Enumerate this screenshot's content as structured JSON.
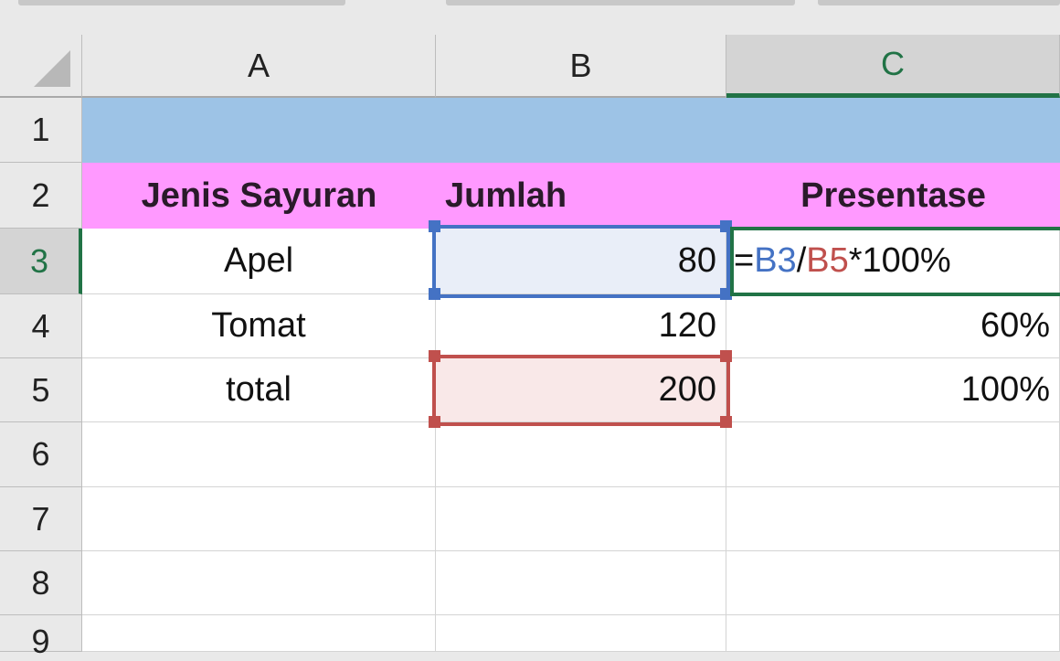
{
  "columns": [
    "A",
    "B",
    "C"
  ],
  "selected_column": "C",
  "rows": [
    "1",
    "2",
    "3",
    "4",
    "5",
    "6",
    "7",
    "8",
    "9"
  ],
  "selected_row": "3",
  "cells": {
    "A2": "Jenis Sayuran",
    "B2": "Jumlah",
    "C2": "Presentase",
    "A3": "Apel",
    "B3": "80",
    "A4": "Tomat",
    "B4": "120",
    "C4": "60%",
    "A5": "total",
    "B5": "200",
    "C5": "100%"
  },
  "formula": {
    "eq": "=",
    "ref1": "B3",
    "op": "/",
    "ref2": "B5",
    "rest": "*100%"
  },
  "colors": {
    "row1_fill": "#9dc3e6",
    "row2_fill": "#ff99ff",
    "ref1": "#4472c4",
    "ref2": "#c0504d",
    "active": "#217346"
  }
}
